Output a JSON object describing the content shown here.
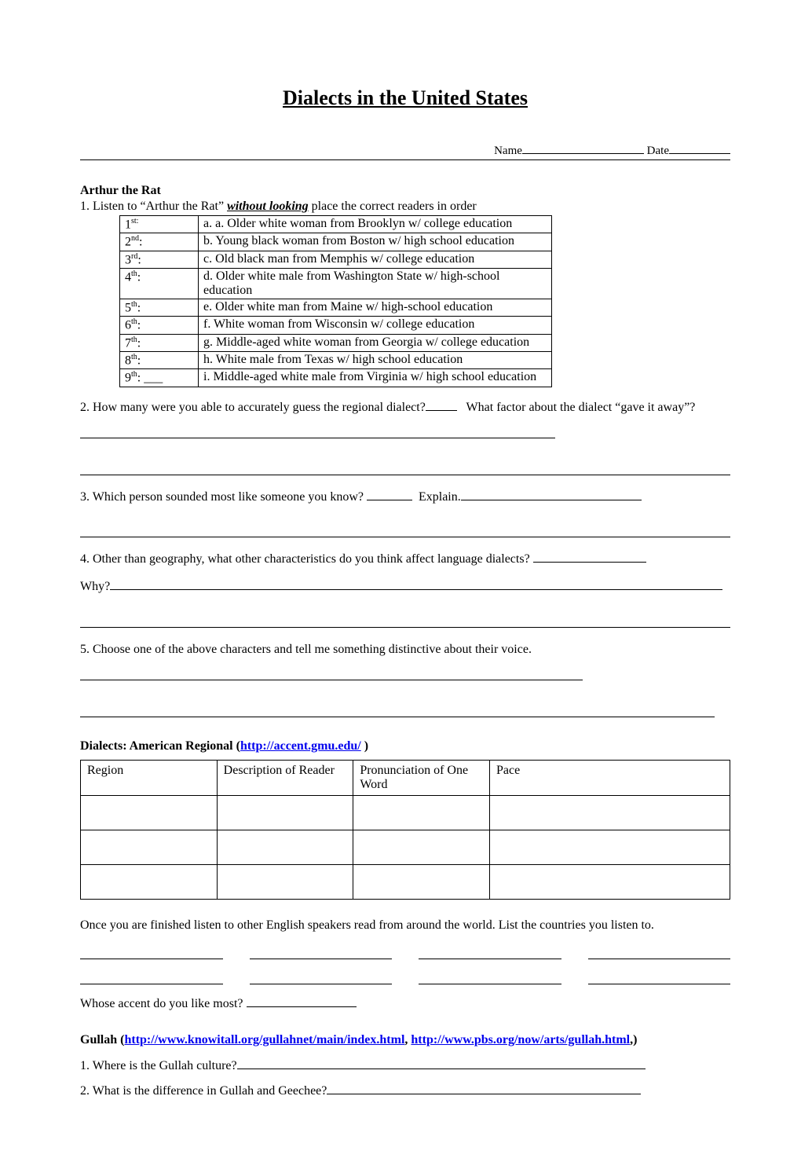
{
  "title": "Dialects in the United States",
  "nameLabel": "Name",
  "dateLabel": "Date",
  "arthur": {
    "heading": "Arthur the Rat",
    "q1_prefix": "1.  Listen to “Arthur the Rat” ",
    "q1_emph": "without looking",
    "q1_suffix": " place the correct readers in order",
    "rows": [
      {
        "ord": "1",
        "sup": "st:",
        "desc": "a.  a.  Older white woman from Brooklyn w/ college education"
      },
      {
        "ord": "2",
        "sup": "nd",
        "suffix": ":",
        "desc": "b.  Young black woman from Boston w/ high school education"
      },
      {
        "ord": "3",
        "sup": "rd",
        "suffix": ":",
        "desc": "c.  Old black man from Memphis w/ college education"
      },
      {
        "ord": "4",
        "sup": "th",
        "suffix": ":",
        "desc": "d.  Older white male from Washington State w/ high-school education"
      },
      {
        "ord": "5",
        "sup": "th",
        "suffix": ":",
        "desc": "e.  Older white man from Maine w/ high-school education"
      },
      {
        "ord": "6",
        "sup": "th",
        "suffix": ":",
        "desc": "f.  White woman from Wisconsin w/ college education"
      },
      {
        "ord": "7",
        "sup": "th",
        "suffix": ":",
        "desc": "g.  Middle-aged white woman from Georgia w/ college education"
      },
      {
        "ord": "8",
        "sup": "th",
        "suffix": ":",
        "desc": "h.  White male from Texas w/ high school education"
      },
      {
        "ord": "9",
        "sup": "th",
        "suffix": ": ___",
        "desc": "i. Middle-aged white male from Virginia w/ high school education"
      }
    ],
    "q2a": "2.  How many were you able to accurately guess the regional dialect?",
    "q2b": "What factor about the dialect “gave it away”?",
    "q3a": "3.  Which person sounded most like someone you know? ",
    "q3b": "Explain.",
    "q4a": "4.  Other than geography, what other characteristics do you think affect language dialects? ",
    "q4b": "Why?",
    "q5": "5.  Choose one of the above characters and tell me something distinctive about their voice."
  },
  "regional": {
    "heading_prefix": "Dialects:  American Regional (",
    "link": "http://accent.gmu.edu/",
    "heading_suffix": " )",
    "headers": [
      "Region",
      "Description of Reader",
      "Pronunciation of One Word",
      "Pace"
    ],
    "postText": "Once you are finished listen to other English speakers read from around the world.  List the countries you listen to.",
    "accent": " Whose accent do you like most?  "
  },
  "gullah": {
    "heading_prefix": "Gullah (",
    "link1": "http://www.knowitall.org/gullahnet/main/index.html",
    "sep": ", ",
    "link2": "http://www.pbs.org/now/arts/gullah.html",
    "heading_suffix": ",)",
    "q1": "1.  Where is the Gullah culture?",
    "q2": "2.  What is the difference in Gullah and Geechee?"
  }
}
